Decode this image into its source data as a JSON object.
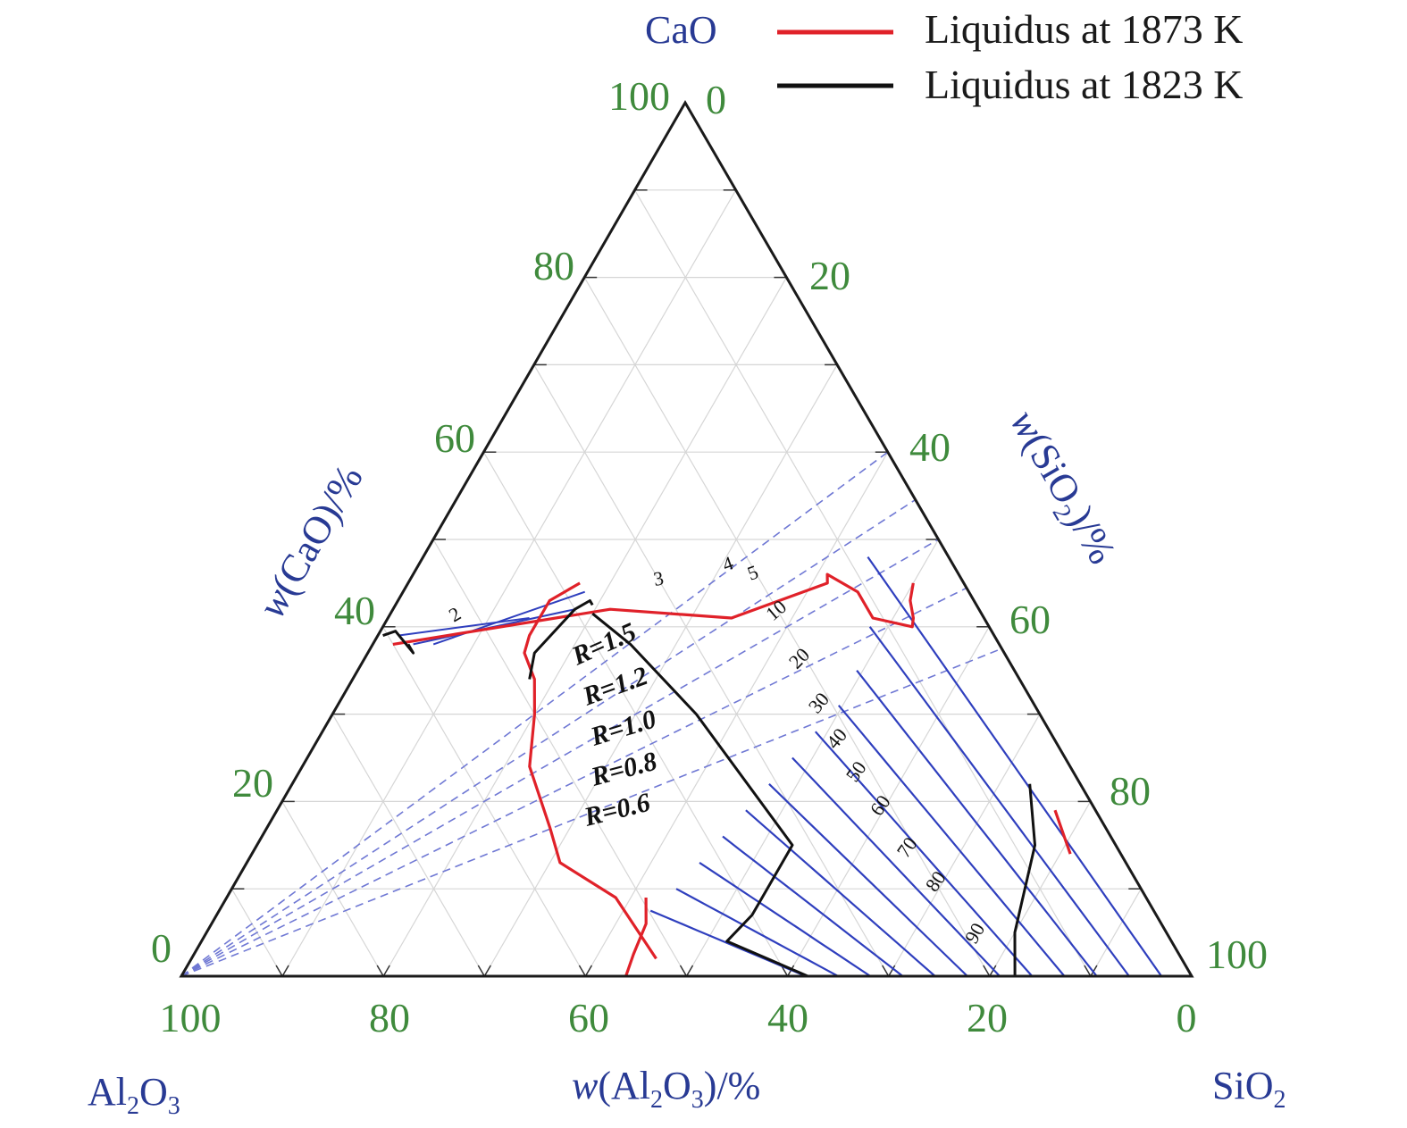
{
  "chart_data": {
    "type": "ternary",
    "vertices": {
      "top": {
        "name": "CaO",
        "sub": ""
      },
      "left": {
        "name": "Al",
        "sub1": "2",
        "name2": "O",
        "sub2": "3"
      },
      "right": {
        "name": "SiO",
        "sub": "2"
      }
    },
    "axis_labels": {
      "cao": {
        "pre": "w",
        "body": "(CaO)/%"
      },
      "sio2": {
        "pre": "w",
        "body1": "(SiO",
        "sub": "2",
        "body2": ")/%"
      },
      "al2o3": {
        "pre": "w",
        "body1": "(Al",
        "sub1": "2",
        "body2": "O",
        "sub2": "3",
        "body3": ")/%"
      }
    },
    "ticks": {
      "bottom": [
        "100",
        "80",
        "60",
        "40",
        "20",
        "0"
      ],
      "left": [
        "0",
        "20",
        "40",
        "60",
        "80",
        "100"
      ],
      "right": [
        "0",
        "20",
        "40",
        "60",
        "80",
        "100"
      ]
    },
    "legend": [
      {
        "label": "Liquidus at 1873 K",
        "color": "#e02129"
      },
      {
        "label": "Liquidus at 1823 K",
        "color": "#111111"
      }
    ],
    "r_lines": [
      {
        "label": "R=1.5",
        "ratio": 1.5
      },
      {
        "label": "R=1.2",
        "ratio": 1.2
      },
      {
        "label": "R=1.0",
        "ratio": 1.0
      },
      {
        "label": "R=0.8",
        "ratio": 0.8
      },
      {
        "label": "R=0.6",
        "ratio": 0.6
      }
    ],
    "isoline_labels": [
      "2",
      "3",
      "4",
      "5",
      "10",
      "20",
      "30",
      "40",
      "50",
      "60",
      "70",
      "80",
      "90"
    ],
    "liquidus_1873K": [
      [
        [
          38,
          60,
          2
        ],
        [
          42,
          36.5,
          21.5
        ],
        [
          41,
          25,
          34
        ],
        [
          45,
          13.5,
          41.5
        ],
        [
          46,
          13,
          41
        ],
        [
          44,
          11,
          45
        ],
        [
          41,
          11,
          48
        ],
        [
          40,
          7.6,
          52.4
        ],
        [
          41,
          7,
          52
        ],
        [
          43,
          6.3,
          50.7
        ],
        [
          45,
          5,
          50
        ]
      ],
      [
        [
          2,
          52,
          46
        ],
        [
          9,
          52.5,
          38.5
        ],
        [
          13,
          56,
          31
        ],
        [
          17,
          55,
          28
        ],
        [
          24,
          53.5,
          22.5
        ],
        [
          30,
          50,
          20
        ],
        [
          34,
          48,
          18
        ],
        [
          37,
          47.5,
          15.5
        ],
        [
          39,
          46,
          15
        ],
        [
          41,
          44,
          15
        ],
        [
          43,
          42,
          15
        ],
        [
          44,
          40,
          16
        ],
        [
          45,
          38,
          17
        ]
      ],
      [
        [
          0,
          56,
          44
        ],
        [
          2.5,
          54,
          43.5
        ],
        [
          6,
          51,
          43
        ],
        [
          9,
          49.5,
          41.5
        ]
      ],
      [
        [
          14,
          5,
          81
        ],
        [
          19,
          4,
          77
        ]
      ]
    ],
    "liquidus_1823K": [
      [
        [
          39,
          60.5,
          0.5
        ],
        [
          39.5,
          59,
          1.5
        ],
        [
          37,
          58.5,
          4.5
        ],
        [
          38,
          58.5,
          3.5
        ]
      ],
      [
        [
          34,
          48.5,
          17.5
        ],
        [
          37,
          46.5,
          16.5
        ],
        [
          42,
          40,
          18
        ],
        [
          43,
          38,
          19
        ],
        [
          42.5,
          38,
          19.5
        ]
      ],
      [
        [
          41.5,
          38.5,
          20
        ],
        [
          38,
          36.5,
          25.5
        ],
        [
          30,
          34,
          36
        ],
        [
          15,
          32,
          53
        ],
        [
          10,
          37,
          53
        ],
        [
          7,
          40,
          53
        ],
        [
          4,
          44,
          52
        ],
        [
          2,
          41,
          57
        ],
        [
          0,
          38,
          62
        ]
      ],
      [
        [
          0,
          17.5,
          82.5
        ],
        [
          5,
          15,
          80
        ],
        [
          15,
          8,
          77
        ],
        [
          22,
          5,
          73
        ]
      ]
    ]
  }
}
